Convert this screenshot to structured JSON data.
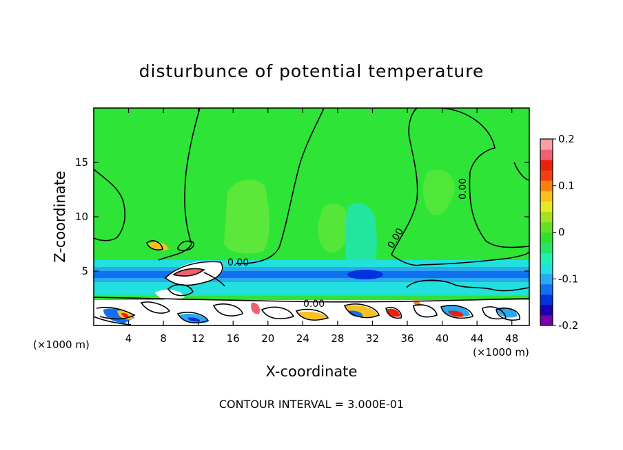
{
  "chart_data": {
    "type": "heatmap",
    "title": "disturbunce of potential temperature",
    "xlabel": "X-coordinate",
    "ylabel": "Z-coordinate",
    "x_unit": "(×1000 m)",
    "y_unit": "(×1000 m)",
    "xlim": [
      0,
      50
    ],
    "ylim": [
      0,
      20
    ],
    "x_ticks": [
      4,
      8,
      12,
      16,
      20,
      24,
      28,
      32,
      36,
      40,
      44,
      48
    ],
    "y_ticks": [
      5,
      10,
      15
    ],
    "colorbar": {
      "range": [
        -0.2,
        0.2
      ],
      "tick_labels": [
        "0.2",
        "0.1",
        "0",
        "-0.1",
        "-0.2"
      ],
      "colors": [
        "#7a00a8",
        "#1a00b0",
        "#0033dd",
        "#1070f0",
        "#2aa8f0",
        "#22e0e0",
        "#20f0b0",
        "#26e46a",
        "#30e030",
        "#66e020",
        "#a8e020",
        "#e8e820",
        "#f8c020",
        "#f88010",
        "#f04010",
        "#e82010",
        "#f06070",
        "#f8a0a8"
      ]
    },
    "contour_labels": [
      "0.00",
      "0.00",
      "0.00",
      "0.00"
    ],
    "footer": "CONTOUR INTERVAL = 3.000E-01"
  }
}
